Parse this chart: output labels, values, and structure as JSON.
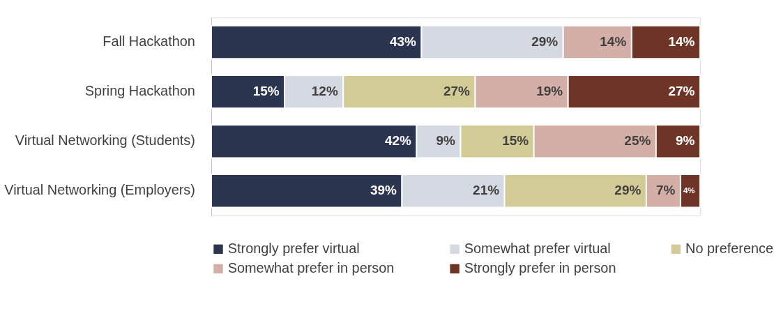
{
  "chart_data": {
    "type": "bar",
    "orientation": "horizontal",
    "stacked": true,
    "legend": "bottom",
    "categories": [
      "Fall Hackathon",
      "Spring Hackathon",
      "Virtual Networking (Students)",
      "Virtual Networking (Employers)"
    ],
    "series": [
      {
        "name": "Strongly prefer virtual",
        "color": "#2b3550",
        "values": [
          43,
          15,
          42,
          39
        ],
        "value_labels": [
          "43%",
          "15%",
          "42%",
          "39%"
        ]
      },
      {
        "name": "Somewhat prefer virtual",
        "color": "#d5d9e2",
        "values": [
          29,
          12,
          9,
          21
        ],
        "value_labels": [
          "29%",
          "12%",
          "9%",
          "21%"
        ]
      },
      {
        "name": "No preference",
        "color": "#d3cb96",
        "values": [
          null,
          27,
          15,
          29
        ],
        "value_labels": [
          null,
          "27%",
          "15%",
          "29%"
        ]
      },
      {
        "name": "Somewhat prefer in person",
        "color": "#d4afa7",
        "values": [
          14,
          19,
          25,
          7
        ],
        "value_labels": [
          "14%",
          "19%",
          "25%",
          "7%"
        ]
      },
      {
        "name": "Strongly prefer in person",
        "color": "#6e3426",
        "values": [
          14,
          27,
          9,
          4
        ],
        "value_labels": [
          "14%",
          "27%",
          "9%",
          "4%"
        ]
      }
    ]
  }
}
